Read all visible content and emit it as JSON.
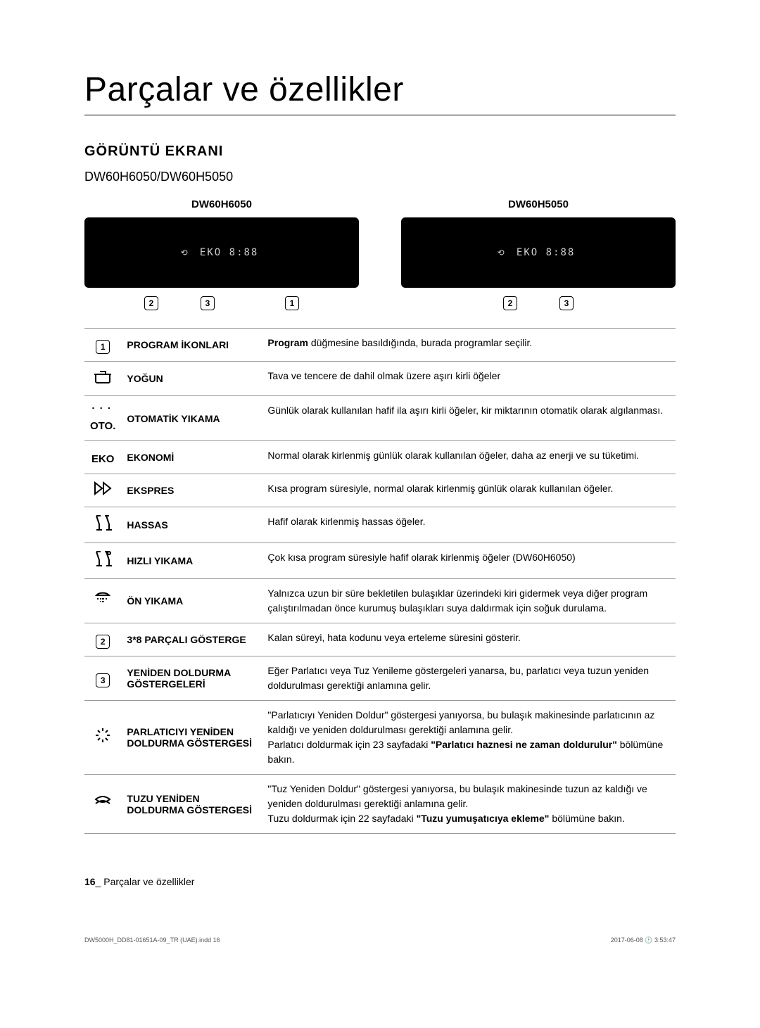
{
  "title": "Parçalar ve özellikler",
  "section": "GÖRÜNTÜ EKRANI",
  "models_line": "DW60H6050/DW60H5050",
  "panels": [
    {
      "label": "DW60H6050",
      "display": "EKO  8:88"
    },
    {
      "label": "DW60H5050",
      "display": "EKO  8:88"
    }
  ],
  "markers_a": [
    "2",
    "3",
    "1"
  ],
  "markers_b": [
    "2",
    "3"
  ],
  "rows": [
    {
      "icon_type": "numbox",
      "icon": "1",
      "name": "PROGRAM İKONLARI",
      "desc": "<b>Program</b> düğmesine basıldığında, burada programlar seçilir."
    },
    {
      "icon_type": "svg",
      "icon": "pot",
      "name": "YOĞUN",
      "desc": "Tava ve tencere de dahil olmak üzere aşırı kirli öğeler"
    },
    {
      "icon_type": "text",
      "icon": "OTO.",
      "name": "OTOMATİK YIKAMA",
      "desc": "Günlük olarak kullanılan hafif ila aşırı kirli öğeler, kir miktarının otomatik olarak algılanması."
    },
    {
      "icon_type": "text",
      "icon": "EKO",
      "name": "EKONOMİ",
      "desc": "Normal olarak kirlenmiş günlük olarak kullanılan öğeler, daha az enerji ve su tüketimi."
    },
    {
      "icon_type": "svg",
      "icon": "ff",
      "name": "EKSPRES",
      "desc": "Kısa program süresiyle, normal olarak kirlenmiş günlük olarak kullanılan öğeler."
    },
    {
      "icon_type": "svg",
      "icon": "glass",
      "name": "HASSAS",
      "desc": "Hafif olarak kirlenmiş hassas öğeler."
    },
    {
      "icon_type": "svg",
      "icon": "glass2",
      "name": "HIZLI YIKAMA",
      "desc": "Çok kısa program süresiyle hafif olarak kirlenmiş öğeler (DW60H6050)"
    },
    {
      "icon_type": "svg",
      "icon": "shower",
      "name": "ÖN YIKAMA",
      "desc": "Yalnızca uzun bir süre bekletilen bulaşıklar üzerindeki kiri gidermek veya diğer program çalıştırılmadan önce kurumuş bulaşıkları suya daldırmak için soğuk durulama."
    },
    {
      "icon_type": "numbox",
      "icon": "2",
      "name": "3*8 PARÇALI GÖSTERGE",
      "desc": "Kalan süreyi, hata kodunu veya erteleme süresini gösterir."
    },
    {
      "icon_type": "numbox",
      "icon": "3",
      "name": "YENİDEN DOLDURMA GÖSTERGELERİ",
      "desc": "Eğer Parlatıcı veya Tuz Yenileme göstergeleri yanarsa, bu, parlatıcı veya tuzun yeniden doldurulması gerektiği anlamına gelir."
    },
    {
      "icon_type": "svg",
      "icon": "sparkle",
      "name": "PARLATICIYI YENİDEN DOLDURMA GÖSTERGESİ",
      "desc": "\"Parlatıcıyı Yeniden Doldur\" göstergesi yanıyorsa, bu bulaşık makinesinde parlatıcının az kaldığı ve yeniden doldurulması gerektiği anlamına gelir.<br>Parlatıcı doldurmak için 23 sayfadaki <b>\"Parlatıcı haznesi ne zaman doldurulur\"</b> bölümüne bakın."
    },
    {
      "icon_type": "svg",
      "icon": "salt",
      "name": "TUZU YENİDEN DOLDURMA GÖSTERGESİ",
      "desc": "\"Tuz Yeniden Doldur\" göstergesi yanıyorsa, bu bulaşık makinesinde tuzun az kaldığı ve yeniden doldurulması gerektiği anlamına gelir.<br>Tuzu doldurmak için 22 sayfadaki <b>\"Tuzu yumuşatıcıya ekleme\"</b> bölümüne bakın."
    }
  ],
  "footer_page": "16",
  "footer_text": "Parçalar ve özellikler",
  "indd": "DW5000H_DD81-01651A-09_TR (UAE).indd   16",
  "timestamp": "2017-06-08   🕐 3:53:47"
}
